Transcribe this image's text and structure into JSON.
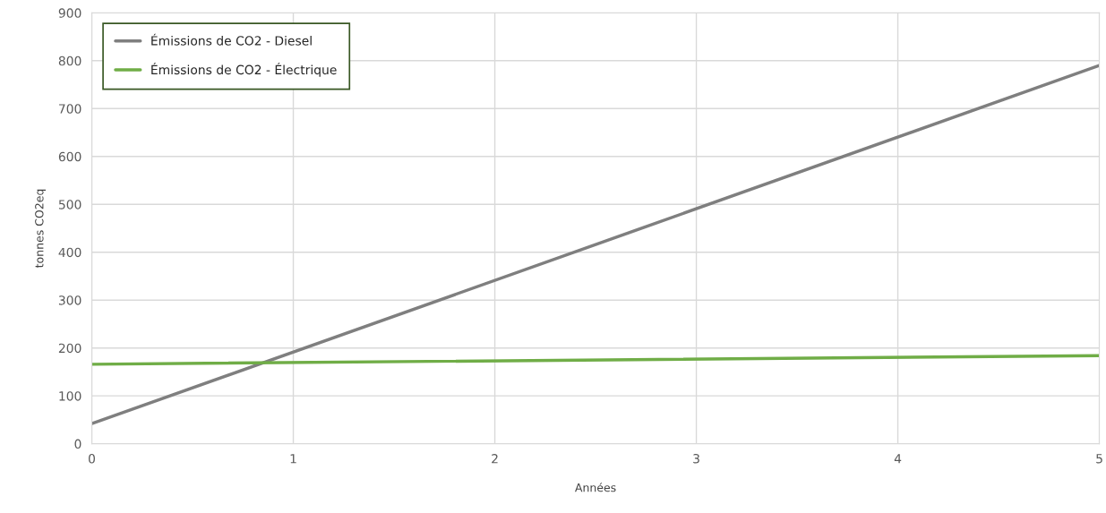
{
  "chart_data": {
    "type": "line",
    "xlabel": "Années",
    "ylabel": "tonnes CO2eq",
    "x": [
      0,
      5
    ],
    "series": [
      {
        "name": "Émissions de CO2 - Diesel",
        "color": "#7f7f7f",
        "values": [
          42,
          790
        ]
      },
      {
        "name": "Émissions de CO2 - Électrique",
        "color": "#70ad47",
        "values": [
          166,
          184
        ]
      }
    ],
    "xlim": [
      0,
      5
    ],
    "xticks": [
      0,
      1,
      2,
      3,
      4,
      5
    ],
    "ylim": [
      0,
      900
    ],
    "yticks": [
      0,
      100,
      200,
      300,
      400,
      500,
      600,
      700,
      800,
      900
    ],
    "grid": true,
    "legend": "top left",
    "marker": "none",
    "line_style": "solid"
  }
}
